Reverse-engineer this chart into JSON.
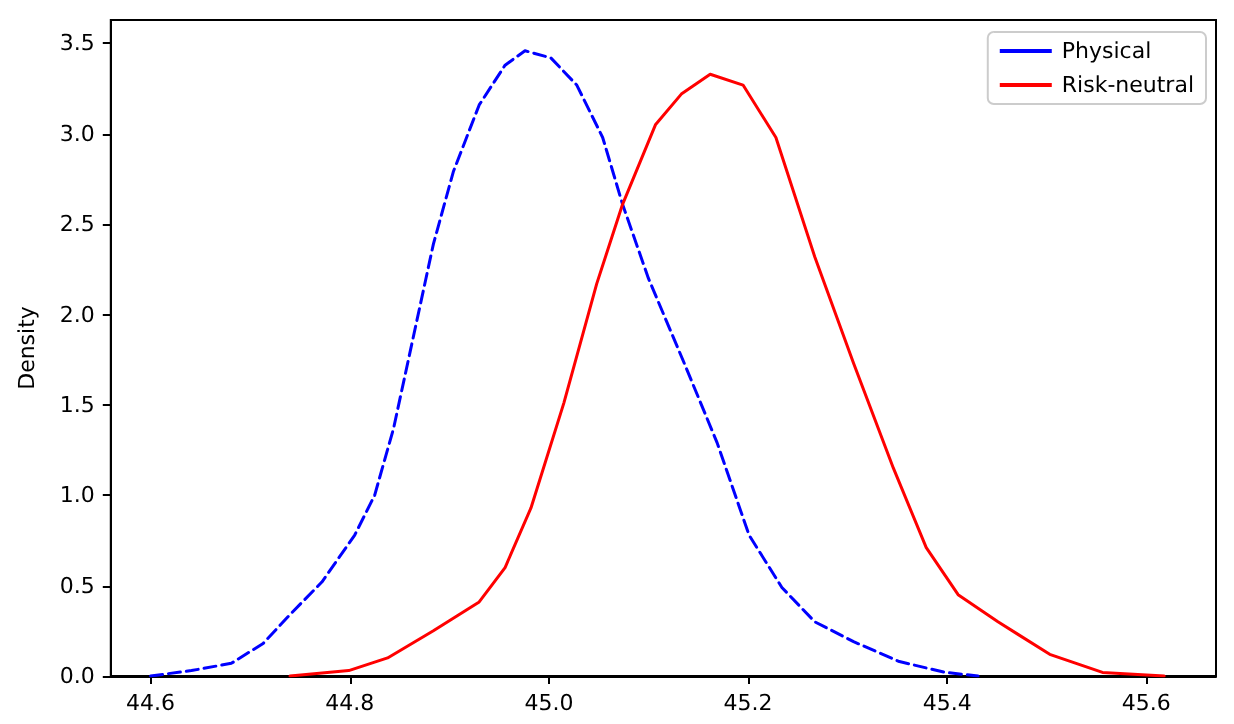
{
  "chart_data": {
    "type": "line",
    "ylabel": "Density",
    "legend": "top right",
    "grid": false,
    "marker": "none",
    "xlim": [
      44.56,
      45.67
    ],
    "ylim": [
      0,
      3.63
    ],
    "xticks": [
      {
        "value": 44.6,
        "label": "44.6"
      },
      {
        "value": 44.8,
        "label": "44.8"
      },
      {
        "value": 45.0,
        "label": "45.0"
      },
      {
        "value": 45.2,
        "label": "45.2"
      },
      {
        "value": 45.4,
        "label": "45.4"
      },
      {
        "value": 45.6,
        "label": "45.6"
      }
    ],
    "yticks": [
      {
        "value": 0,
        "label": "0.0"
      },
      {
        "value": 0.5,
        "label": "0.5"
      },
      {
        "value": 1,
        "label": "1.0"
      },
      {
        "value": 1.5,
        "label": "1.5"
      },
      {
        "value": 2,
        "label": "2.0"
      },
      {
        "value": 2.5,
        "label": "2.5"
      },
      {
        "value": 3,
        "label": "3.0"
      },
      {
        "value": 3.5,
        "label": "3.5"
      }
    ],
    "series": [
      {
        "name": "Physical",
        "color": "#0000ff",
        "line_style": "dashed",
        "x": [
          44.6,
          44.641,
          44.681,
          44.713,
          44.74,
          44.772,
          44.805,
          44.825,
          44.844,
          44.864,
          44.884,
          44.904,
          44.93,
          44.956,
          44.976,
          45.002,
          45.028,
          45.054,
          45.074,
          45.1,
          45.136,
          45.169,
          45.201,
          45.234,
          45.267,
          45.306,
          45.352,
          45.398,
          45.431
        ],
        "values": [
          0,
          0.03,
          0.07,
          0.18,
          0.34,
          0.52,
          0.78,
          1.0,
          1.37,
          1.88,
          2.39,
          2.79,
          3.16,
          3.38,
          3.46,
          3.42,
          3.27,
          2.98,
          2.61,
          2.2,
          1.73,
          1.29,
          0.78,
          0.49,
          0.3,
          0.19,
          0.08,
          0.02,
          0
        ]
      },
      {
        "name": "Risk-neutral",
        "color": "#ff0000",
        "line_style": "solid",
        "x": [
          44.74,
          44.799,
          44.838,
          44.884,
          44.93,
          44.956,
          44.982,
          45.015,
          45.048,
          45.074,
          45.107,
          45.133,
          45.162,
          45.195,
          45.228,
          45.267,
          45.306,
          45.346,
          45.379,
          45.411,
          45.451,
          45.503,
          45.556,
          45.618
        ],
        "values": [
          0,
          0.03,
          0.1,
          0.25,
          0.41,
          0.6,
          0.93,
          1.51,
          2.17,
          2.61,
          3.05,
          3.22,
          3.33,
          3.27,
          2.98,
          2.32,
          1.73,
          1.15,
          0.71,
          0.45,
          0.3,
          0.12,
          0.02,
          0
        ]
      }
    ]
  }
}
